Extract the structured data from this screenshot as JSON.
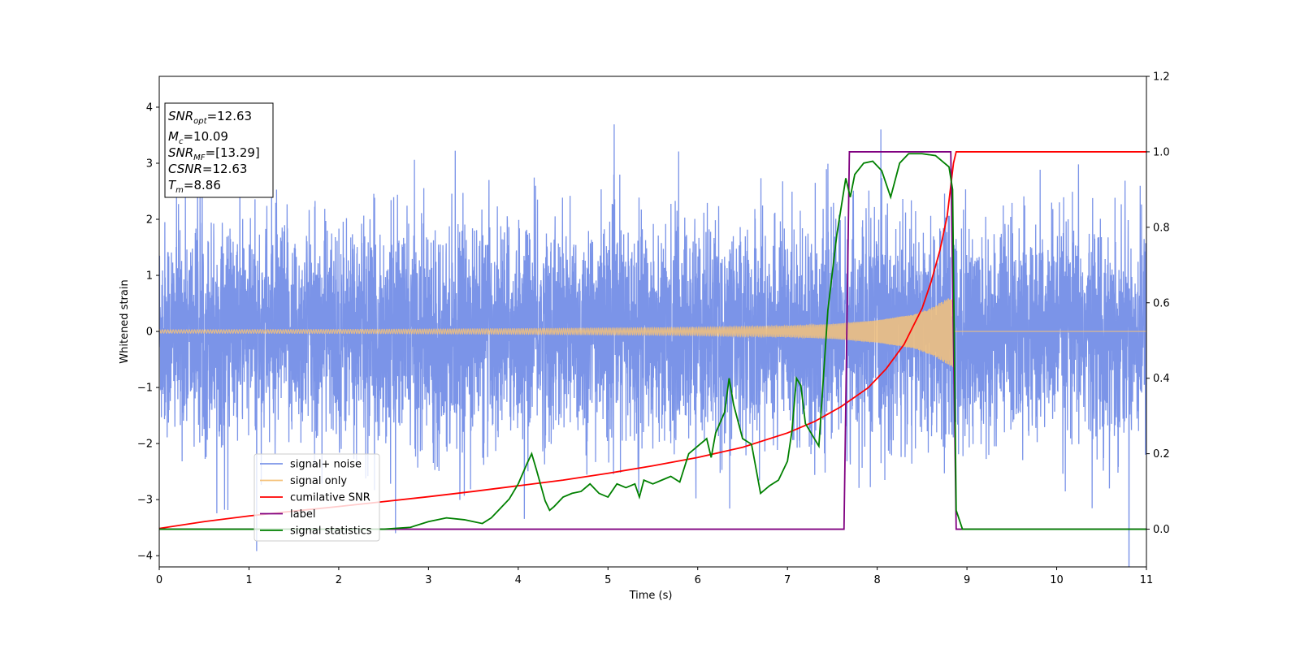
{
  "chart_data": {
    "type": "line",
    "xlabel": "Time (s)",
    "ylabel": "Whitened strain",
    "xlim": [
      0,
      11
    ],
    "ylim_left": [
      -4.2,
      4.55
    ],
    "ylim_right": [
      -0.1,
      1.2
    ],
    "x_ticks": [
      "0",
      "1",
      "2",
      "3",
      "4",
      "5",
      "6",
      "7",
      "8",
      "9",
      "10",
      "11"
    ],
    "y_ticks_left": [
      "4",
      "3",
      "2",
      "1",
      "0",
      "−1",
      "−2",
      "−3",
      "−4"
    ],
    "y_ticks_left_values": [
      4,
      3,
      2,
      1,
      0,
      -1,
      -2,
      -3,
      -4
    ],
    "y_ticks_right": [
      "1.2",
      "1.0",
      "0.8",
      "0.6",
      "0.4",
      "0.2",
      "0.0"
    ],
    "y_ticks_right_values": [
      1.2,
      1.0,
      0.8,
      0.6,
      0.4,
      0.2,
      0.0
    ],
    "annotation": {
      "snr_opt": {
        "sym": "SNR",
        "sub": "opt",
        "val": "=12.63"
      },
      "mc": {
        "sym": "M",
        "sub": "c",
        "val": "=10.09"
      },
      "snr_mf": {
        "sym": "SNR",
        "sub": "MF",
        "val": "=[13.29]"
      },
      "csnr": {
        "sym": "CSNR",
        "val": "=12.63"
      },
      "tm": {
        "sym": "T",
        "sub": "m",
        "val": "=8.86"
      }
    },
    "legend": {
      "placement": "lower-left",
      "items": [
        {
          "label": "signal+ noise",
          "color": "#7b94e8"
        },
        {
          "label": "signal only",
          "color": "#f5c27a"
        },
        {
          "label": "cumilative SNR",
          "color": "#ff0000"
        },
        {
          "label": "label",
          "color": "#800080"
        },
        {
          "label": "signal statistics",
          "color": "#008000"
        }
      ]
    },
    "series": [
      {
        "name": "signal+ noise",
        "axis": "left",
        "color": "#7b94e8",
        "description_values": {
          "noise_sigma": 1.0,
          "x_start": 0,
          "x_end": 11
        }
      },
      {
        "name": "signal only",
        "axis": "left",
        "color": "#f5c27a",
        "envelope": {
          "x": [
            0,
            2,
            4,
            6,
            7,
            7.5,
            8,
            8.4,
            8.6,
            8.75,
            8.85,
            8.86,
            11
          ],
          "amp": [
            0.03,
            0.035,
            0.05,
            0.07,
            0.1,
            0.13,
            0.2,
            0.3,
            0.42,
            0.56,
            0.65,
            0.0,
            0.0
          ]
        }
      },
      {
        "name": "cumilative SNR",
        "axis": "right",
        "color": "#ff0000",
        "x": [
          0,
          0.5,
          1,
          1.5,
          2,
          2.5,
          3,
          3.5,
          4,
          4.5,
          5,
          5.5,
          6,
          6.5,
          7,
          7.3,
          7.6,
          7.9,
          8.1,
          8.3,
          8.5,
          8.6,
          8.7,
          8.78,
          8.85,
          8.88,
          9,
          10,
          11
        ],
        "y": [
          0.002,
          0.02,
          0.035,
          0.048,
          0.06,
          0.073,
          0.086,
          0.1,
          0.115,
          0.13,
          0.148,
          0.168,
          0.19,
          0.217,
          0.255,
          0.285,
          0.325,
          0.375,
          0.425,
          0.49,
          0.585,
          0.655,
          0.74,
          0.83,
          0.97,
          1.0,
          1.0,
          1.0,
          1.0
        ]
      },
      {
        "name": "label",
        "axis": "right",
        "color": "#800080",
        "x": [
          0,
          7.63,
          7.69,
          8.82,
          8.88,
          11
        ],
        "y": [
          0,
          0,
          1,
          1,
          0,
          0
        ]
      },
      {
        "name": "signal statistics",
        "axis": "right",
        "color": "#008000",
        "x": [
          0,
          1,
          2,
          2.5,
          2.8,
          3.0,
          3.2,
          3.4,
          3.5,
          3.6,
          3.7,
          3.8,
          3.9,
          4.0,
          4.1,
          4.15,
          4.2,
          4.3,
          4.35,
          4.4,
          4.5,
          4.6,
          4.7,
          4.8,
          4.9,
          5.0,
          5.1,
          5.2,
          5.3,
          5.35,
          5.4,
          5.5,
          5.6,
          5.7,
          5.8,
          5.9,
          6.0,
          6.1,
          6.15,
          6.2,
          6.3,
          6.35,
          6.4,
          6.5,
          6.6,
          6.7,
          6.8,
          6.9,
          7.0,
          7.05,
          7.1,
          7.15,
          7.2,
          7.3,
          7.35,
          7.45,
          7.55,
          7.65,
          7.7,
          7.75,
          7.85,
          7.95,
          8.05,
          8.15,
          8.25,
          8.35,
          8.5,
          8.65,
          8.8,
          8.84,
          8.88,
          8.95,
          9.1,
          11
        ],
        "y": [
          0.0,
          0.0,
          0.0,
          0.0,
          0.005,
          0.02,
          0.03,
          0.025,
          0.02,
          0.015,
          0.03,
          0.055,
          0.08,
          0.12,
          0.175,
          0.2,
          0.16,
          0.075,
          0.05,
          0.06,
          0.085,
          0.095,
          0.1,
          0.12,
          0.095,
          0.085,
          0.12,
          0.11,
          0.12,
          0.085,
          0.13,
          0.12,
          0.13,
          0.14,
          0.125,
          0.2,
          0.22,
          0.24,
          0.19,
          0.255,
          0.31,
          0.4,
          0.33,
          0.24,
          0.225,
          0.095,
          0.115,
          0.13,
          0.18,
          0.26,
          0.4,
          0.38,
          0.28,
          0.24,
          0.22,
          0.58,
          0.78,
          0.93,
          0.88,
          0.94,
          0.97,
          0.975,
          0.95,
          0.88,
          0.97,
          0.995,
          0.995,
          0.99,
          0.96,
          0.9,
          0.05,
          0.0,
          0.0,
          0.0
        ]
      }
    ]
  }
}
